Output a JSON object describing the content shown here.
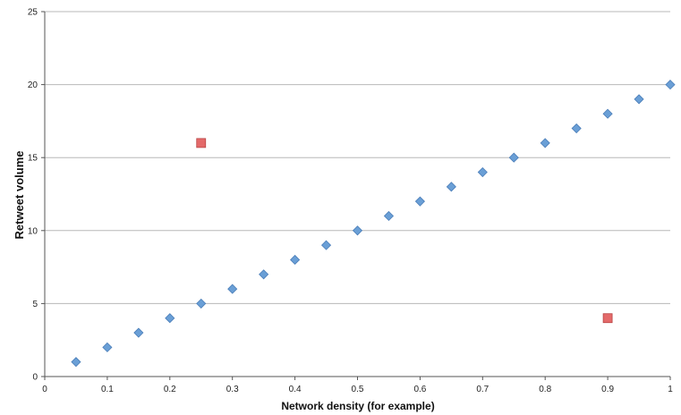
{
  "chart_data": {
    "type": "scatter",
    "title": "",
    "xlabel": "Network density (for example)",
    "ylabel": "Retweet volume",
    "xlim": [
      0,
      1
    ],
    "ylim": [
      0,
      25
    ],
    "x_ticks": [
      "0",
      "0.1",
      "0.2",
      "0.3",
      "0.4",
      "0.5",
      "0.6",
      "0.7",
      "0.8",
      "0.9",
      "1"
    ],
    "y_ticks": [
      "0",
      "5",
      "10",
      "15",
      "20",
      "25"
    ],
    "grid": "horizontal",
    "legend": "none",
    "series": [
      {
        "marker": "diamond",
        "color": "#6a9fd6",
        "points": [
          {
            "x": 0.05,
            "y": 1
          },
          {
            "x": 0.1,
            "y": 2
          },
          {
            "x": 0.15,
            "y": 3
          },
          {
            "x": 0.2,
            "y": 4
          },
          {
            "x": 0.25,
            "y": 5
          },
          {
            "x": 0.3,
            "y": 6
          },
          {
            "x": 0.35,
            "y": 7
          },
          {
            "x": 0.4,
            "y": 8
          },
          {
            "x": 0.45,
            "y": 9
          },
          {
            "x": 0.5,
            "y": 10
          },
          {
            "x": 0.55,
            "y": 11
          },
          {
            "x": 0.6,
            "y": 12
          },
          {
            "x": 0.65,
            "y": 13
          },
          {
            "x": 0.7,
            "y": 14
          },
          {
            "x": 0.75,
            "y": 15
          },
          {
            "x": 0.8,
            "y": 16
          },
          {
            "x": 0.85,
            "y": 17
          },
          {
            "x": 0.9,
            "y": 18
          },
          {
            "x": 0.95,
            "y": 19
          },
          {
            "x": 1.0,
            "y": 20
          }
        ]
      },
      {
        "marker": "square",
        "color": "#e46a6a",
        "points": [
          {
            "x": 0.25,
            "y": 16
          },
          {
            "x": 0.9,
            "y": 4
          }
        ]
      }
    ]
  }
}
